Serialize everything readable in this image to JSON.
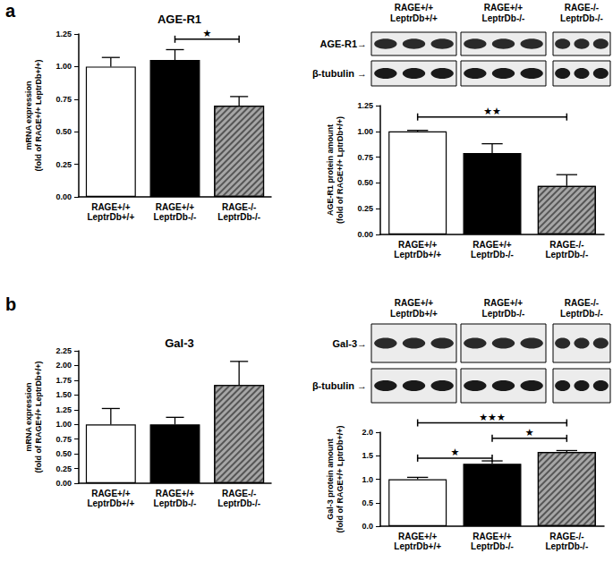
{
  "panel_labels": [
    "a",
    "b"
  ],
  "blots": [
    {
      "target": "AGE-R1→",
      "loading": "β-tubulin →",
      "lanes": [
        "RAGE+/+\nLeptrDb+/+",
        "RAGE+/+\nLeptrDb-/-",
        "RAGE-/-\nLeptrDb-/-"
      ]
    },
    {
      "target": "Gal-3→",
      "loading": "β-tubulin →",
      "lanes": [
        "RAGE+/+\nLeptrDb+/+",
        "RAGE+/+\nLeptrDb-/-",
        "RAGE-/-\nLeptrDb-/-"
      ]
    }
  ],
  "chart_data": [
    {
      "type": "bar",
      "title": "AGE-R1",
      "y_label": "mRNA expression\n(fold of RAGE+/+ LeptrDb+/+)",
      "categories": [
        "RAGE+/+\nLeptrDb+/+",
        "RAGE+/+\nLeptrDb-/-",
        "RAGE-/-\nLeptrDb-/-"
      ],
      "values": [
        1.0,
        1.05,
        0.7
      ],
      "errors": [
        0.07,
        0.08,
        0.07
      ],
      "colors": [
        "#ffffff",
        "#000000",
        "#a6a6a6"
      ],
      "ylim": [
        0,
        1.25
      ],
      "yticks": [
        {
          "value": 0,
          "label": "0.00"
        },
        {
          "value": 0.25,
          "label": "0.25"
        },
        {
          "value": 0.5,
          "label": "0.50"
        },
        {
          "value": 0.75,
          "label": "0.75"
        },
        {
          "value": 1,
          "label": "1.00"
        },
        {
          "value": 1.25,
          "label": "1.25"
        }
      ],
      "grid": false,
      "annotations": [
        {
          "from": 1,
          "to": 2,
          "y": 1.21,
          "text": "★"
        }
      ]
    },
    {
      "type": "bar",
      "y_label": "AGE-R1 protein amount\n(fold of RAGE+/+ LptrDb+/+)",
      "categories": [
        "RAGE+/+\nLeptrDb+/+",
        "RAGE+/+\nLeptrDb-/-",
        "RAGE-/-\nLeptrDb-/-"
      ],
      "values": [
        1.0,
        0.79,
        0.47
      ],
      "errors": [
        0.01,
        0.09,
        0.11
      ],
      "colors": [
        "#ffffff",
        "#000000",
        "#a6a6a6"
      ],
      "ylim": [
        0,
        1.25
      ],
      "yticks": [
        {
          "value": 0,
          "label": "0.00"
        },
        {
          "value": 0.25,
          "label": "0.25"
        },
        {
          "value": 0.5,
          "label": "0.50"
        },
        {
          "value": 0.75,
          "label": "0.75"
        },
        {
          "value": 1,
          "label": "1.00"
        },
        {
          "value": 1.25,
          "label": "1.25"
        }
      ],
      "grid": false,
      "annotations": [
        {
          "from": 0,
          "to": 2,
          "y": 1.14,
          "text": "★★"
        }
      ]
    },
    {
      "type": "bar",
      "title": "Gal-3",
      "y_label": "mRNA expression\n(fold of RAGE+/+ LeptrDb+/+)",
      "categories": [
        "RAGE+/+\nLeptrDb+/+",
        "RAGE+/+\nLeptrDb-/-",
        "RAGE-/-\nLeptrDb-/-"
      ],
      "values": [
        1.0,
        1.0,
        1.67
      ],
      "errors": [
        0.27,
        0.12,
        0.4
      ],
      "colors": [
        "#ffffff",
        "#000000",
        "#a6a6a6"
      ],
      "ylim": [
        0,
        2.25
      ],
      "yticks": [
        {
          "value": 0,
          "label": "0.00"
        },
        {
          "value": 0.25,
          "label": "0.25"
        },
        {
          "value": 0.5,
          "label": "0.50"
        },
        {
          "value": 0.75,
          "label": "0.75"
        },
        {
          "value": 1,
          "label": "1.00"
        },
        {
          "value": 1.25,
          "label": "1.25"
        },
        {
          "value": 1.5,
          "label": "1.50"
        },
        {
          "value": 1.75,
          "label": "1.75"
        },
        {
          "value": 2,
          "label": "2.00"
        },
        {
          "value": 2.25,
          "label": "2.25"
        }
      ],
      "grid": false,
      "annotations": []
    },
    {
      "type": "bar",
      "y_label": "Gal-3 protein amount\n(fold of RAGE+/+ LptrDb+/+)",
      "categories": [
        "RAGE+/+\nLeptrDb+/+",
        "RAGE+/+\nLeptrDb-/-",
        "RAGE-/-\nLeptrDb-/-"
      ],
      "values": [
        1.0,
        1.33,
        1.58
      ],
      "errors": [
        0.04,
        0.06,
        0.03
      ],
      "colors": [
        "#ffffff",
        "#000000",
        "#a6a6a6"
      ],
      "ylim": [
        0,
        2.0
      ],
      "yticks": [
        {
          "value": 0,
          "label": "0.0"
        },
        {
          "value": 0.5,
          "label": "0.5"
        },
        {
          "value": 1,
          "label": "1.0"
        },
        {
          "value": 1.5,
          "label": "1.5"
        },
        {
          "value": 2,
          "label": "2.0"
        }
      ],
      "grid": false,
      "annotations": [
        {
          "from": 0,
          "to": 2,
          "y": 2.2,
          "text": "★★★"
        },
        {
          "from": 0,
          "to": 1,
          "y": 1.45,
          "text": "★"
        },
        {
          "from": 1,
          "to": 2,
          "y": 1.87,
          "text": "★"
        }
      ]
    }
  ]
}
